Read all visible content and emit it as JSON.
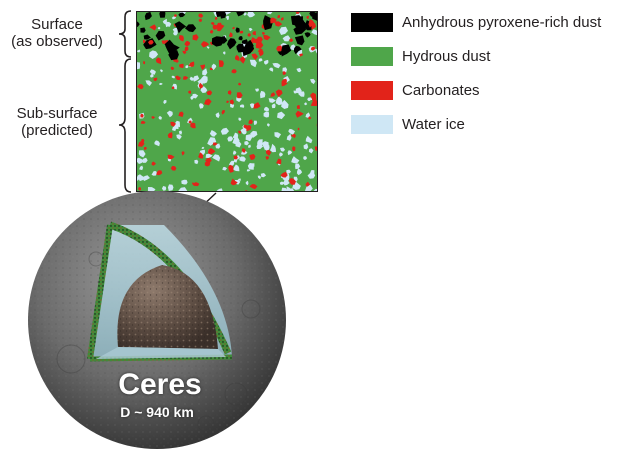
{
  "labels": {
    "surface_line1": "Surface",
    "surface_line2": "(as observed)",
    "subsurface_line1": "Sub-surface",
    "subsurface_line2": "(predicted)"
  },
  "legend": [
    {
      "label": "Anhydrous pyroxene-rich dust",
      "color": "#000000"
    },
    {
      "label": "Hydrous dust",
      "color": "#4fa64a"
    },
    {
      "label": "Carbonates",
      "color": "#e2231a"
    },
    {
      "label": "Water ice",
      "color": "#cfe7f5"
    }
  ],
  "body": {
    "name": "Ceres",
    "diameter": "D ~ 940 km"
  }
}
